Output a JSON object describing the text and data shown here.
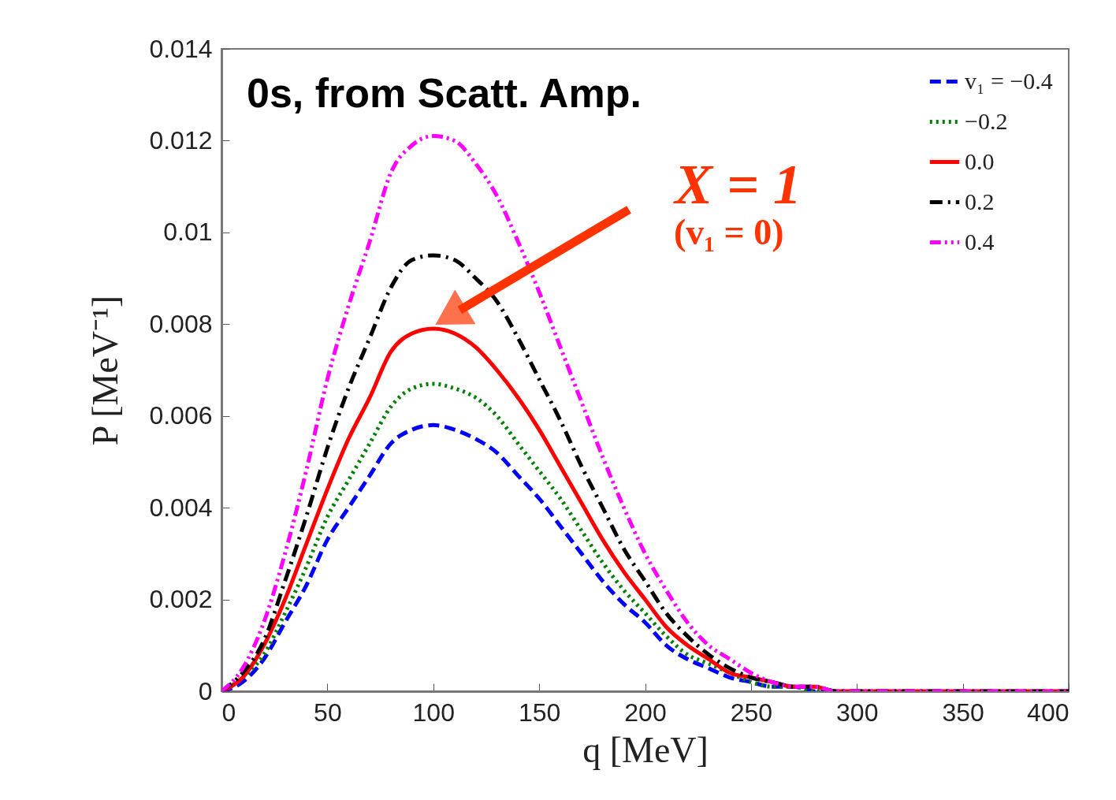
{
  "chart_data": {
    "type": "line",
    "xlabel": "q  [MeV]",
    "ylabel": "P  [MeV⁻¹]",
    "x": [
      0,
      10,
      20,
      30,
      40,
      50,
      60,
      70,
      80,
      90,
      100,
      110,
      120,
      130,
      140,
      150,
      160,
      170,
      180,
      190,
      200,
      210,
      220,
      230,
      240,
      250,
      260,
      270,
      280,
      290,
      300,
      320,
      350,
      400
    ],
    "series": [
      {
        "name": "v₁ = −0.4",
        "color": "#0000ff",
        "line_style": "dashed",
        "values": [
          0,
          0.0002,
          0.0007,
          0.0015,
          0.0023,
          0.0033,
          0.004,
          0.0047,
          0.0054,
          0.0057,
          0.0058,
          0.0057,
          0.0055,
          0.0052,
          0.0047,
          0.0042,
          0.0036,
          0.003,
          0.0024,
          0.0019,
          0.0015,
          0.001,
          0.0007,
          0.0005,
          0.0003,
          0.0002,
          0.0001,
          0.0001,
          0,
          0,
          null,
          null,
          null,
          null
        ]
      },
      {
        "name": "−0.2",
        "color": "#008000",
        "line_style": "dotted",
        "values": [
          0,
          0.0003,
          0.0008,
          0.0017,
          0.0027,
          0.0038,
          0.0046,
          0.0054,
          0.0062,
          0.0066,
          0.0067,
          0.0066,
          0.0064,
          0.006,
          0.0054,
          0.0048,
          0.0042,
          0.0035,
          0.0028,
          0.0022,
          0.0017,
          0.0012,
          0.0008,
          0.0006,
          0.0004,
          0.0002,
          0.0001,
          0.0001,
          0,
          0,
          null,
          null,
          null,
          null
        ]
      },
      {
        "name": "0.0",
        "color": "#ff0000",
        "line_style": "solid",
        "values": [
          0,
          0.0003,
          0.001,
          0.002,
          0.0032,
          0.0044,
          0.0055,
          0.0064,
          0.0074,
          0.0078,
          0.0079,
          0.0078,
          0.0075,
          0.007,
          0.0064,
          0.0057,
          0.0049,
          0.0041,
          0.0033,
          0.0026,
          0.002,
          0.0014,
          0.001,
          0.0007,
          0.0004,
          0.0003,
          0.0002,
          0.0001,
          0.0001,
          0,
          0,
          0,
          0,
          0
        ]
      },
      {
        "name": "0.2",
        "color": "#000000",
        "line_style": "dashdot",
        "values": [
          0,
          0.0004,
          0.0011,
          0.0024,
          0.0038,
          0.0053,
          0.0066,
          0.0077,
          0.0088,
          0.0094,
          0.0095,
          0.0094,
          0.009,
          0.0085,
          0.0077,
          0.0068,
          0.0059,
          0.0049,
          0.004,
          0.0031,
          0.0024,
          0.0017,
          0.0012,
          0.0008,
          0.0005,
          0.0003,
          0.0002,
          0.0001,
          0.0001,
          0,
          0,
          0,
          0,
          0
        ]
      },
      {
        "name": "0.4",
        "color": "#ff00ff",
        "line_style": "dashdotdot",
        "values": [
          0,
          0.0005,
          0.0015,
          0.003,
          0.0048,
          0.0068,
          0.0084,
          0.0098,
          0.0113,
          0.0119,
          0.0121,
          0.012,
          0.0115,
          0.0108,
          0.0098,
          0.0087,
          0.0075,
          0.0063,
          0.0051,
          0.004,
          0.003,
          0.0022,
          0.0015,
          0.001,
          0.0007,
          0.0004,
          0.0002,
          0.0001,
          0.0001,
          0,
          0,
          0,
          0,
          0
        ]
      }
    ],
    "xlim": [
      0,
      400
    ],
    "xticks": [
      0,
      50,
      100,
      150,
      200,
      250,
      300,
      350,
      400
    ],
    "ylim": [
      0,
      0.014
    ],
    "yticks": [
      0,
      0.002,
      0.004,
      0.006,
      0.008,
      0.01,
      0.012,
      0.014
    ],
    "annotations": [
      "0s, from Scatt. Amp.",
      "X = 1",
      "(v₁ = 0)"
    ],
    "grid": false,
    "legend": "top right"
  }
}
